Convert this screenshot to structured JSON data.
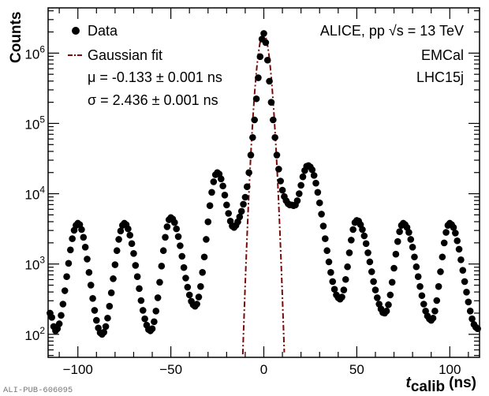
{
  "chart_data": {
    "type": "scatter",
    "title": "",
    "xlabel": "t_calib (ns)",
    "xlabel_parts": {
      "var": "t",
      "sub": "calib",
      "unit": "(ns)"
    },
    "ylabel": "Counts",
    "xlim": [
      -116,
      116
    ],
    "ylim": [
      47,
      4400000
    ],
    "yscale": "log",
    "grid": false,
    "x_ticks": [
      -100,
      -50,
      0,
      50,
      100
    ],
    "x_tick_labels": [
      "−100",
      "−50",
      "0",
      "50",
      "100"
    ],
    "y_ticks": [
      100,
      1000,
      10000,
      100000,
      1000000
    ],
    "y_tick_labels": [
      {
        "base": "10",
        "exp": "2"
      },
      {
        "base": "10",
        "exp": "3"
      },
      {
        "base": "10",
        "exp": "4"
      },
      {
        "base": "10",
        "exp": "5"
      },
      {
        "base": "10",
        "exp": "6"
      }
    ],
    "legend_position": "top-left",
    "series": [
      {
        "name": "Data",
        "style": "markers",
        "color": "#000000",
        "x_start": -115,
        "x_step": 1,
        "values": [
          200,
          174,
          129,
          112,
          120,
          141,
          186,
          269,
          417,
          661,
          1023,
          1585,
          2291,
          3020,
          3548,
          3802,
          3631,
          3090,
          2399,
          1738,
          1175,
          759,
          501,
          324,
          219,
          158,
          123,
          105,
          100,
          107,
          129,
          170,
          251,
          389,
          617,
          977,
          1549,
          2239,
          2951,
          3548,
          3802,
          3631,
          3162,
          2570,
          1950,
          1413,
          955,
          661,
          447,
          302,
          219,
          166,
          135,
          117,
          112,
          120,
          151,
          214,
          331,
          550,
          933,
          1549,
          2399,
          3388,
          4266,
          4571,
          4365,
          3890,
          3162,
          2455,
          1820,
          1288,
          891,
          631,
          468,
          363,
          295,
          263,
          251,
          269,
          339,
          479,
          759,
          1259,
          2239,
          3981,
          6761,
          10470,
          14790,
          18620,
          19950,
          19050,
          16220,
          12880,
          9550,
          6918,
          5248,
          4074,
          3467,
          3311,
          3548,
          3981,
          4677,
          5623,
          7079,
          8913,
          12590,
          19950,
          35480,
          63100,
          112200,
          223900,
          446700,
          891300,
          1585000,
          1905000,
          1413000,
          794300,
          398100,
          199500,
          112200,
          63100,
          35480,
          22390,
          15140,
          11220,
          9120,
          7943,
          7244,
          6918,
          6918,
          6761,
          6918,
          7943,
          10000,
          13180,
          17380,
          21380,
          24550,
          25120,
          23990,
          21880,
          18200,
          14130,
          10470,
          7413,
          5129,
          3467,
          2291,
          1549,
          1072,
          759,
          562,
          437,
          363,
          331,
          316,
          339,
          427,
          603,
          912,
          1445,
          2188,
          3090,
          3890,
          4169,
          4074,
          3631,
          3090,
          2512,
          1950,
          1445,
          1072,
          776,
          562,
          427,
          331,
          269,
          229,
          204,
          200,
          214,
          263,
          363,
          550,
          871,
          1380,
          2089,
          2884,
          3548,
          3802,
          3631,
          3311,
          2818,
          2239,
          1738,
          1259,
          912,
          661,
          479,
          355,
          269,
          214,
          182,
          166,
          158,
          170,
          214,
          302,
          479,
          776,
          1259,
          1995,
          2818,
          3548,
          3802,
          3631,
          3311,
          2754,
          2138,
          1622,
          1148,
          813,
          562,
          398,
          288,
          214,
          166,
          138,
          126,
          120
        ]
      },
      {
        "name": "Gaussian fit",
        "style": "dash-dot line",
        "color": "#7a0a0a",
        "function": "gaussian",
        "mu": -0.133,
        "sigma": 2.436,
        "amplitude": 1900000
      }
    ],
    "legend": {
      "data_label": "Data",
      "fit_label": "Gaussian fit",
      "mu_text": "μ = -0.133 ± 0.001 ns",
      "sigma_text": "σ = 2.436 ± 0.001 ns"
    },
    "annotations": {
      "experiment": "ALICE, pp √s = 13 TeV",
      "detector": "EMCal",
      "period": "LHC15j"
    }
  },
  "watermark": "ALI-PUB-606095"
}
